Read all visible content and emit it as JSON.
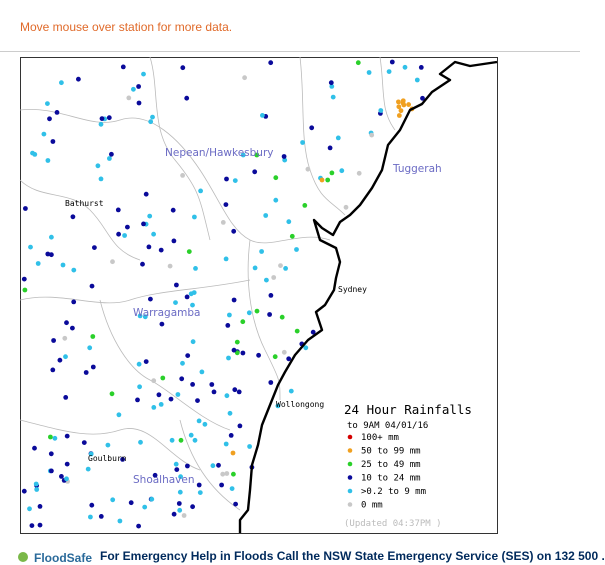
{
  "header": {
    "hint": "Move mouse over station for more data."
  },
  "map": {
    "regions": [
      "Nepean/Hawkesbury",
      "Tuggerah",
      "Warragamba",
      "Shoalhaven"
    ],
    "towns": [
      "Bathurst",
      "Sydney",
      "Wollongong",
      "Goulburn"
    ]
  },
  "legend": {
    "title": "24 Hour Rainfalls",
    "subtitle": "to 9AM 04/01/16",
    "items": [
      {
        "label": "100+ mm",
        "color": "#d40000"
      },
      {
        "label": "50  to 99 mm",
        "color": "#f0a020"
      },
      {
        "label": "25  to 49 mm",
        "color": "#2ad02a"
      },
      {
        "label": "10  to 24 mm",
        "color": "#0a0a9a"
      },
      {
        "label": ">0.2 to 9 mm",
        "color": "#30c0e8"
      },
      {
        "label": "0 mm",
        "color": "#c8c8c8"
      }
    ],
    "updated": "(Updated 04:37PM  )"
  },
  "footer": {
    "logo": "FloodSafe",
    "message": "For Emergency Help in Floods Call the NSW State Emergency Service (SES) on 132 500 ."
  }
}
